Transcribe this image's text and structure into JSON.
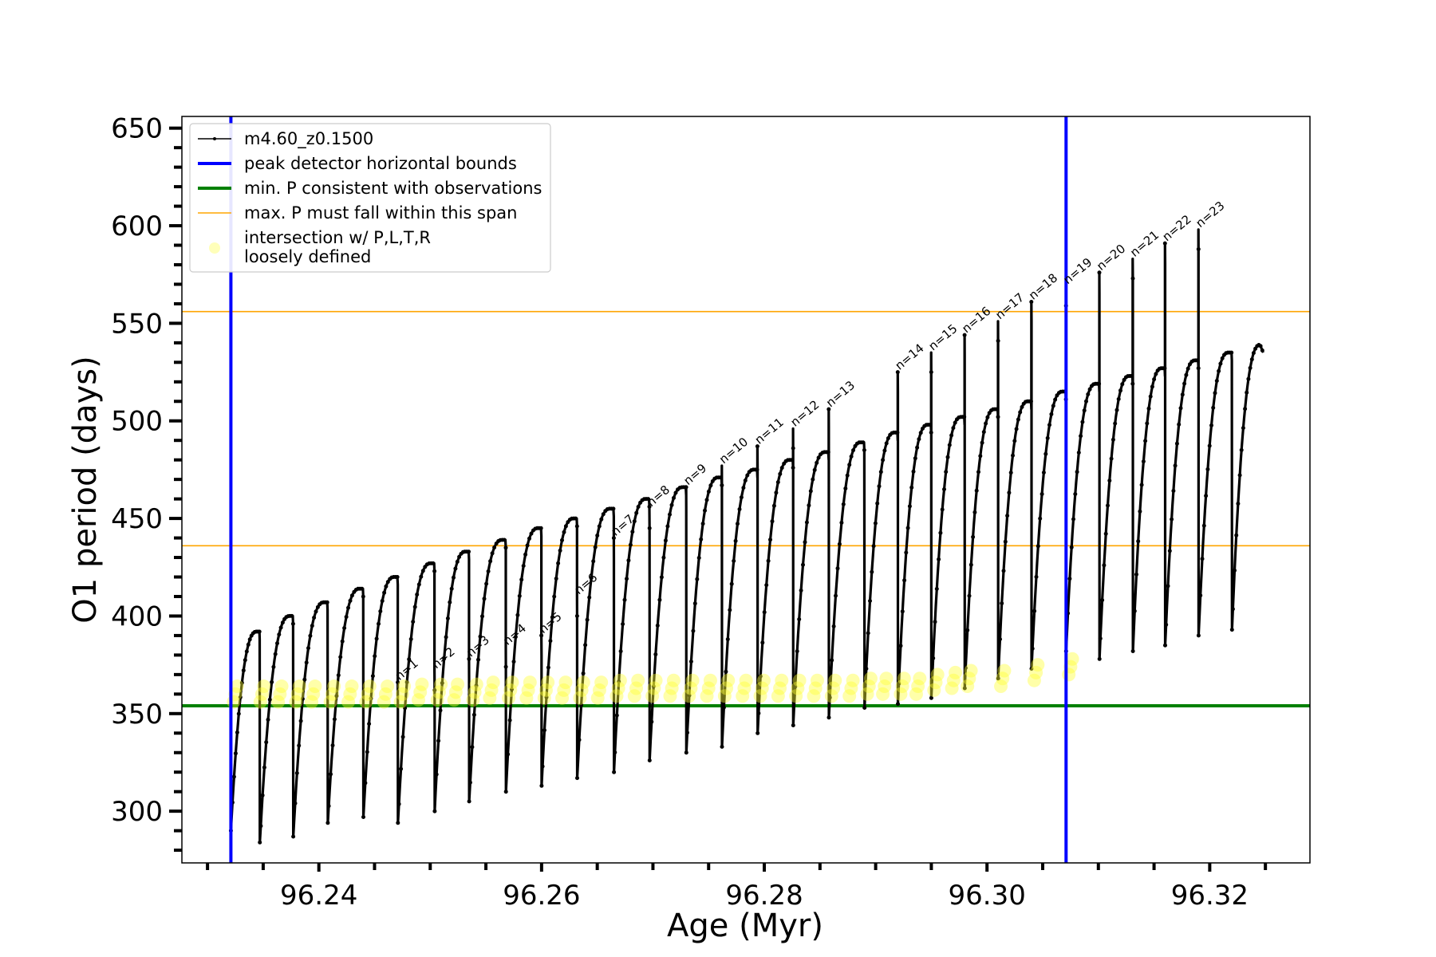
{
  "chart_data": {
    "type": "line",
    "xlabel": "Age (Myr)",
    "ylabel": "O1 period (days)",
    "xlim": [
      96.2277,
      96.329
    ],
    "ylim": [
      273.5,
      656.0
    ],
    "xticks": [
      "96.24",
      "96.26",
      "96.28",
      "96.30",
      "96.32"
    ],
    "xtick_values": [
      96.24,
      96.26,
      96.28,
      96.3,
      96.32
    ],
    "yticks": [
      "300",
      "350",
      "400",
      "450",
      "500",
      "550",
      "600",
      "650"
    ],
    "ytick_values": [
      300,
      350,
      400,
      450,
      500,
      550,
      600,
      650
    ],
    "legend": {
      "position": "upper left",
      "entries": [
        {
          "label": "m4.60_z0.1500",
          "style": "black-line-dots",
          "color": "#000000"
        },
        {
          "label": "peak detector horizontal bounds",
          "style": "line",
          "color": "#0000ff"
        },
        {
          "label": "min. P consistent with observations",
          "style": "line",
          "color": "#008000"
        },
        {
          "label": "max. P must fall within this span",
          "style": "thin-line",
          "color": "#ffa500"
        },
        {
          "label": "intersection w/ P,L,T,R",
          "label2": "loosely defined",
          "style": "dot",
          "color": "#ffff66"
        }
      ]
    },
    "vertical_lines": [
      {
        "x": 96.2321,
        "color": "#0000ff",
        "label": "peak detector horizontal bounds"
      },
      {
        "x": 96.3071,
        "color": "#0000ff",
        "label": "peak detector horizontal bounds"
      }
    ],
    "horizontal_lines": [
      {
        "y": 354,
        "color": "#008000",
        "label": "min. P consistent with observations"
      },
      {
        "y": 436,
        "color": "#ffa500",
        "label": "max. P must fall within this span"
      },
      {
        "y": 556,
        "color": "#ffa500",
        "label": "max. P must fall within this span"
      }
    ],
    "pulse_cycles": [
      {
        "start_age": 96.2321,
        "min_period": 290,
        "max_period": 392
      },
      {
        "start_age": 96.2347,
        "min_period": 284,
        "max_period": 400
      },
      {
        "start_age": 96.2377,
        "min_period": 287,
        "max_period": 407
      },
      {
        "start_age": 96.2408,
        "min_period": 294,
        "max_period": 414
      },
      {
        "start_age": 96.244,
        "min_period": 297,
        "max_period": 420
      },
      {
        "start_age": 96.2471,
        "min_period": 294,
        "max_period": 427
      },
      {
        "start_age": 96.2504,
        "min_period": 300,
        "max_period": 433
      },
      {
        "start_age": 96.2535,
        "min_period": 305,
        "max_period": 439
      },
      {
        "start_age": 96.2568,
        "min_period": 310,
        "max_period": 445
      },
      {
        "start_age": 96.26,
        "min_period": 313,
        "max_period": 450
      },
      {
        "start_age": 96.2632,
        "min_period": 317,
        "max_period": 455
      },
      {
        "start_age": 96.2665,
        "min_period": 320,
        "max_period": 460
      },
      {
        "start_age": 96.2697,
        "min_period": 326,
        "max_period": 466
      },
      {
        "start_age": 96.273,
        "min_period": 330,
        "max_period": 471
      },
      {
        "start_age": 96.2762,
        "min_period": 333,
        "max_period": 475
      },
      {
        "start_age": 96.2794,
        "min_period": 340,
        "max_period": 480
      },
      {
        "start_age": 96.2826,
        "min_period": 344,
        "max_period": 484
      },
      {
        "start_age": 96.2858,
        "min_period": 348,
        "max_period": 489
      },
      {
        "start_age": 96.289,
        "min_period": 353,
        "max_period": 494
      },
      {
        "start_age": 96.292,
        "min_period": 355,
        "max_period": 498
      },
      {
        "start_age": 96.295,
        "min_period": 358,
        "max_period": 502
      },
      {
        "start_age": 96.298,
        "min_period": 363,
        "max_period": 506
      },
      {
        "start_age": 96.301,
        "min_period": 368,
        "max_period": 510
      },
      {
        "start_age": 96.304,
        "min_period": 373,
        "max_period": 515
      },
      {
        "start_age": 96.3071,
        "min_period": 382,
        "max_period": 519
      },
      {
        "start_age": 96.3101,
        "min_period": 378,
        "max_period": 523
      },
      {
        "start_age": 96.3131,
        "min_period": 382,
        "max_period": 527
      },
      {
        "start_age": 96.316,
        "min_period": 385,
        "max_period": 531
      },
      {
        "start_age": 96.319,
        "min_period": 390,
        "max_period": 535
      },
      {
        "start_age": 96.322,
        "min_period": 393,
        "max_period": 539
      }
    ],
    "end_age": 96.3248,
    "end_period": 535,
    "peak_spikes": [
      {
        "label": "n=1",
        "x": 96.2471,
        "y": 366
      },
      {
        "label": "n=2",
        "x": 96.2504,
        "y": 372
      },
      {
        "label": "n=3",
        "x": 96.2535,
        "y": 378
      },
      {
        "label": "n=4",
        "x": 96.2568,
        "y": 384
      },
      {
        "label": "n=5",
        "x": 96.26,
        "y": 390
      },
      {
        "label": "n=6",
        "x": 96.2632,
        "y": 410
      },
      {
        "label": "n=7",
        "x": 96.2665,
        "y": 440
      },
      {
        "label": "n=8",
        "x": 96.2697,
        "y": 455
      },
      {
        "label": "n=9",
        "x": 96.273,
        "y": 466
      },
      {
        "label": "n=10",
        "x": 96.2762,
        "y": 477
      },
      {
        "label": "n=11",
        "x": 96.2794,
        "y": 487
      },
      {
        "label": "n=12",
        "x": 96.2826,
        "y": 496
      },
      {
        "label": "n=13",
        "x": 96.2858,
        "y": 506
      },
      {
        "label": "n=14",
        "x": 96.292,
        "y": 525
      },
      {
        "label": "n=15",
        "x": 96.295,
        "y": 535
      },
      {
        "label": "n=16",
        "x": 96.298,
        "y": 544
      },
      {
        "label": "n=17",
        "x": 96.301,
        "y": 551
      },
      {
        "label": "n=18",
        "x": 96.304,
        "y": 561
      },
      {
        "label": "n=19",
        "x": 96.3071,
        "y": 569
      },
      {
        "label": "n=20",
        "x": 96.3101,
        "y": 576
      },
      {
        "label": "n=21",
        "x": 96.3131,
        "y": 583
      },
      {
        "label": "n=22",
        "x": 96.316,
        "y": 591
      },
      {
        "label": "n=23",
        "x": 96.319,
        "y": 598
      }
    ],
    "intersection_points": [
      {
        "x": 96.2325,
        "y": 360
      },
      {
        "x": 96.2349,
        "y": 360
      },
      {
        "x": 96.2365,
        "y": 360
      },
      {
        "x": 96.2381,
        "y": 360
      },
      {
        "x": 96.2395,
        "y": 360
      },
      {
        "x": 96.2412,
        "y": 360
      },
      {
        "x": 96.2428,
        "y": 360
      },
      {
        "x": 96.2444,
        "y": 360
      },
      {
        "x": 96.246,
        "y": 360
      },
      {
        "x": 96.2475,
        "y": 360
      },
      {
        "x": 96.2491,
        "y": 361
      },
      {
        "x": 96.2508,
        "y": 361
      },
      {
        "x": 96.2523,
        "y": 361
      },
      {
        "x": 96.254,
        "y": 361
      },
      {
        "x": 96.2555,
        "y": 362
      },
      {
        "x": 96.2572,
        "y": 362
      },
      {
        "x": 96.2588,
        "y": 362
      },
      {
        "x": 96.2604,
        "y": 362
      },
      {
        "x": 96.262,
        "y": 362
      },
      {
        "x": 96.2636,
        "y": 362
      },
      {
        "x": 96.2652,
        "y": 362
      },
      {
        "x": 96.2669,
        "y": 363
      },
      {
        "x": 96.2685,
        "y": 363
      },
      {
        "x": 96.2701,
        "y": 363
      },
      {
        "x": 96.2717,
        "y": 363
      },
      {
        "x": 96.2734,
        "y": 363
      },
      {
        "x": 96.275,
        "y": 363
      },
      {
        "x": 96.2766,
        "y": 363
      },
      {
        "x": 96.2782,
        "y": 363
      },
      {
        "x": 96.2798,
        "y": 363
      },
      {
        "x": 96.2814,
        "y": 363
      },
      {
        "x": 96.283,
        "y": 363
      },
      {
        "x": 96.2846,
        "y": 363
      },
      {
        "x": 96.2862,
        "y": 363
      },
      {
        "x": 96.2878,
        "y": 363
      },
      {
        "x": 96.2894,
        "y": 364
      },
      {
        "x": 96.2908,
        "y": 364
      },
      {
        "x": 96.2924,
        "y": 364
      },
      {
        "x": 96.2938,
        "y": 364
      },
      {
        "x": 96.2954,
        "y": 366
      },
      {
        "x": 96.297,
        "y": 367
      },
      {
        "x": 96.2984,
        "y": 368
      },
      {
        "x": 96.3014,
        "y": 368
      },
      {
        "x": 96.3044,
        "y": 371
      },
      {
        "x": 96.3075,
        "y": 374
      }
    ]
  }
}
